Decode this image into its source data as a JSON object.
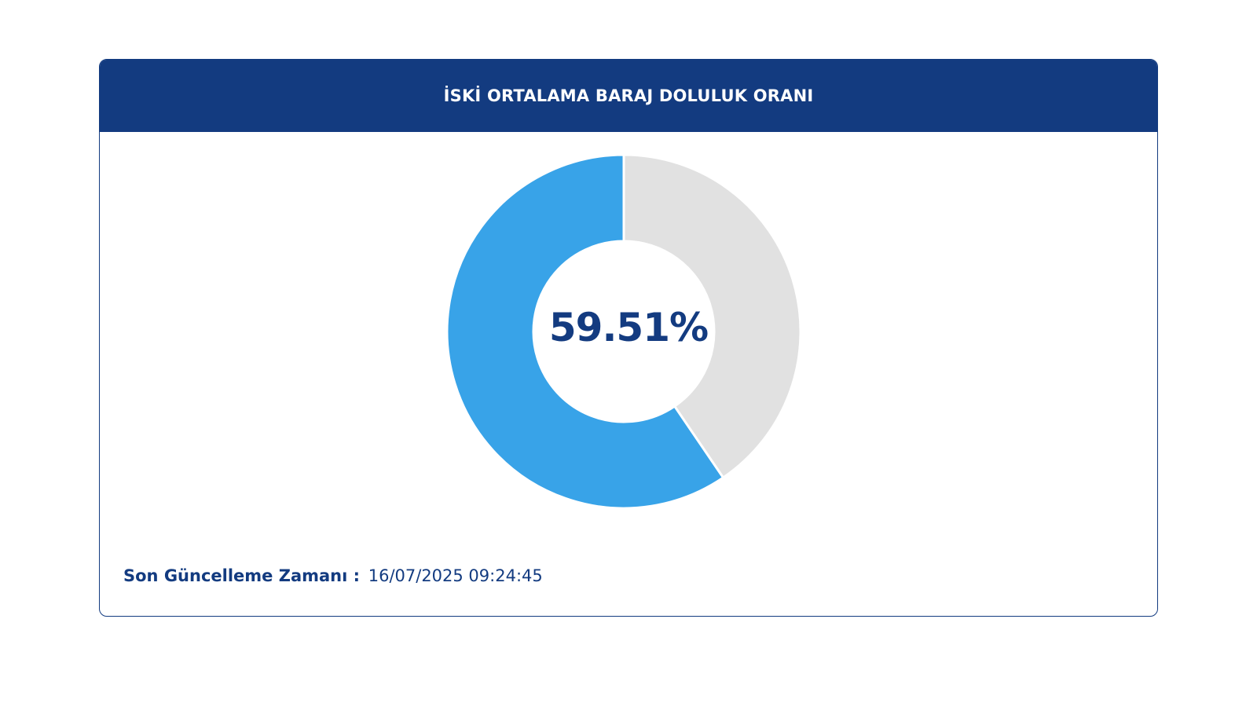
{
  "header": {
    "title": "İSKİ ORTALAMA BARAJ DOLULUK ORANI"
  },
  "chart_data": {
    "type": "pie",
    "style": "donut",
    "center_label": "59.51%",
    "slices": [
      {
        "value": 59.51,
        "color": "#38a3e8"
      },
      {
        "value": 40.49,
        "color": "#e1e1e1"
      }
    ]
  },
  "footer": {
    "label": "Son Güncelleme Zamanı :",
    "value": "16/07/2025 09:24:45"
  },
  "colors": {
    "primary": "#133b80",
    "filled": "#38a3e8",
    "empty": "#e1e1e1"
  }
}
